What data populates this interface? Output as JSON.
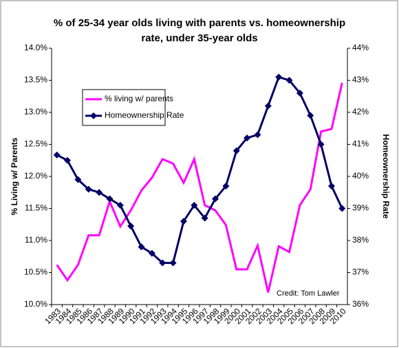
{
  "chart_data": {
    "type": "line",
    "title": [
      "% of 25-34 year olds living with parents vs. homeownership",
      "rate, under 35-year olds"
    ],
    "ylabel": "% Living w/ Parents",
    "y2label": "Homeownership Rate",
    "annotation": "Credit: Tom Lawler",
    "legend": "upper left",
    "categories": [
      "1983",
      "1984",
      "1985",
      "1986",
      "1987",
      "1988",
      "1989",
      "1990",
      "1991",
      "1992",
      "1993",
      "1994",
      "1995",
      "1996",
      "1997",
      "1998",
      "1999",
      "2000",
      "2001",
      "2002",
      "2003",
      "2004",
      "2005",
      "2006",
      "2007",
      "2008",
      "2009",
      "2010"
    ],
    "series": [
      {
        "name": "% living w/ parents",
        "color": "#ff00ff",
        "axis": "y",
        "values": [
          10.62,
          10.38,
          10.62,
          11.08,
          11.08,
          11.61,
          11.22,
          11.47,
          11.78,
          11.98,
          12.27,
          12.2,
          11.9,
          12.27,
          11.55,
          11.47,
          11.24,
          10.55,
          10.55,
          10.92,
          10.19,
          10.91,
          10.82,
          11.55,
          11.8,
          12.7,
          12.74,
          13.46
        ]
      },
      {
        "name": "Homeownership Rate",
        "color": "#000066",
        "axis": "y2",
        "marker": "diamond",
        "values": [
          40.67,
          40.5,
          39.9,
          39.6,
          39.5,
          39.3,
          39.1,
          38.45,
          37.8,
          37.6,
          37.3,
          37.3,
          38.6,
          39.1,
          38.7,
          39.3,
          39.7,
          40.8,
          41.2,
          41.3,
          42.2,
          43.1,
          43.0,
          42.6,
          41.9,
          41.0,
          39.7,
          39.0
        ]
      }
    ],
    "ylim": [
      10,
      14
    ],
    "yticks": [
      {
        "value": 10,
        "label": "10.0%"
      },
      {
        "value": 10.5,
        "label": "10.5%"
      },
      {
        "value": 11,
        "label": "11.0%"
      },
      {
        "value": 11.5,
        "label": "11.5%"
      },
      {
        "value": 12,
        "label": "12.0%"
      },
      {
        "value": 12.5,
        "label": "12.5%"
      },
      {
        "value": 13,
        "label": "13.0%"
      },
      {
        "value": 13.5,
        "label": "13.5%"
      },
      {
        "value": 14,
        "label": "14.0%"
      }
    ],
    "y2lim": [
      36,
      44
    ],
    "y2ticks": [
      {
        "value": 36,
        "label": "36%"
      },
      {
        "value": 37,
        "label": "37%"
      },
      {
        "value": 38,
        "label": "38%"
      },
      {
        "value": 39,
        "label": "39%"
      },
      {
        "value": 40,
        "label": "40%"
      },
      {
        "value": 41,
        "label": "41%"
      },
      {
        "value": 42,
        "label": "42%"
      },
      {
        "value": 43,
        "label": "43%"
      },
      {
        "value": 44,
        "label": "44%"
      }
    ]
  }
}
